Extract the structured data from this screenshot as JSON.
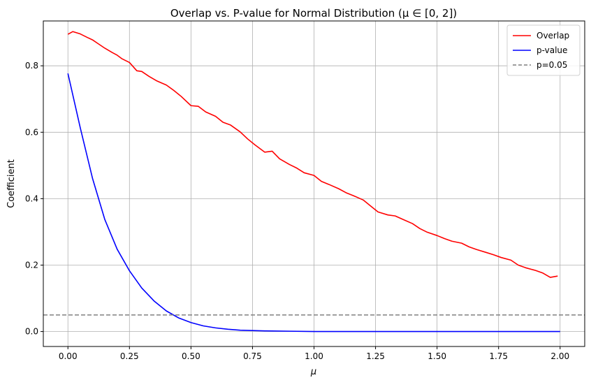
{
  "chart_data": {
    "type": "line",
    "title": "Overlap vs. P-value for Normal Distribution (μ ∈ [0, 2])",
    "xlabel": "μ",
    "ylabel": "Coefficient",
    "xlim": [
      -0.1,
      2.1
    ],
    "ylim": [
      -0.045,
      0.935
    ],
    "x_ticks": [
      0.0,
      0.25,
      0.5,
      0.75,
      1.0,
      1.25,
      1.5,
      1.75,
      2.0
    ],
    "x_tick_labels": [
      "0.00",
      "0.25",
      "0.50",
      "0.75",
      "1.00",
      "1.25",
      "1.50",
      "1.75",
      "2.00"
    ],
    "y_ticks": [
      0.0,
      0.2,
      0.4,
      0.6,
      0.8
    ],
    "y_tick_labels": [
      "0.0",
      "0.2",
      "0.4",
      "0.6",
      "0.8"
    ],
    "grid": true,
    "legend_position": "top-right",
    "series": [
      {
        "name": "Overlap",
        "color": "#ff0000",
        "style": "solid",
        "x": [
          0.0,
          0.02,
          0.05,
          0.08,
          0.1,
          0.12,
          0.15,
          0.18,
          0.2,
          0.22,
          0.25,
          0.28,
          0.3,
          0.33,
          0.36,
          0.4,
          0.43,
          0.46,
          0.5,
          0.53,
          0.56,
          0.6,
          0.63,
          0.66,
          0.7,
          0.73,
          0.76,
          0.8,
          0.83,
          0.86,
          0.9,
          0.93,
          0.96,
          1.0,
          1.03,
          1.06,
          1.1,
          1.13,
          1.16,
          1.2,
          1.23,
          1.26,
          1.3,
          1.33,
          1.36,
          1.4,
          1.43,
          1.46,
          1.5,
          1.53,
          1.56,
          1.6,
          1.63,
          1.66,
          1.7,
          1.73,
          1.76,
          1.8,
          1.83,
          1.86,
          1.9,
          1.93,
          1.96,
          1.99
        ],
        "y": [
          0.895,
          0.903,
          0.896,
          0.885,
          0.878,
          0.868,
          0.853,
          0.84,
          0.832,
          0.821,
          0.81,
          0.785,
          0.783,
          0.768,
          0.755,
          0.742,
          0.726,
          0.708,
          0.68,
          0.678,
          0.661,
          0.648,
          0.63,
          0.622,
          0.601,
          0.58,
          0.562,
          0.54,
          0.543,
          0.52,
          0.503,
          0.492,
          0.478,
          0.47,
          0.452,
          0.443,
          0.43,
          0.418,
          0.409,
          0.396,
          0.378,
          0.36,
          0.351,
          0.348,
          0.338,
          0.325,
          0.31,
          0.299,
          0.289,
          0.28,
          0.272,
          0.266,
          0.255,
          0.247,
          0.238,
          0.231,
          0.223,
          0.215,
          0.2,
          0.192,
          0.184,
          0.176,
          0.163,
          0.167
        ]
      },
      {
        "name": "p-value",
        "color": "#0000ff",
        "style": "solid",
        "x": [
          0.0,
          0.05,
          0.1,
          0.15,
          0.2,
          0.25,
          0.3,
          0.35,
          0.4,
          0.45,
          0.5,
          0.55,
          0.6,
          0.65,
          0.7,
          0.75,
          0.8,
          0.9,
          1.0,
          1.25,
          1.5,
          1.75,
          2.0
        ],
        "y": [
          0.777,
          0.614,
          0.461,
          0.337,
          0.248,
          0.183,
          0.131,
          0.092,
          0.062,
          0.041,
          0.027,
          0.017,
          0.011,
          0.007,
          0.004,
          0.003,
          0.002,
          0.001,
          0.0,
          0.0,
          0.0,
          0.0,
          0.0
        ]
      },
      {
        "name": "p=0.05",
        "color": "#808080",
        "style": "dashed",
        "hline": 0.05
      }
    ]
  }
}
